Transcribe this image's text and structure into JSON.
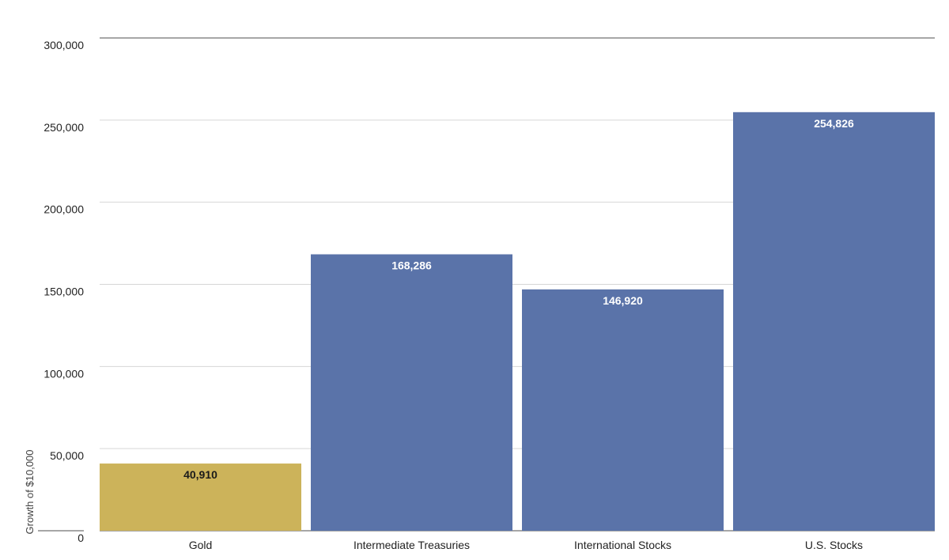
{
  "chart_data": {
    "type": "bar",
    "categories": [
      "Gold",
      "Intermediate Treasuries",
      "International Stocks",
      "U.S. Stocks"
    ],
    "values": [
      40910,
      168286,
      146920,
      254826
    ],
    "value_labels": [
      "40,910",
      "168,286",
      "146,920",
      "254,826"
    ],
    "ylabel": "Growth of $10,000",
    "ylim": [
      0,
      300000
    ],
    "yticks": [
      0,
      50000,
      100000,
      150000,
      200000,
      250000,
      300000
    ],
    "ytick_labels": [
      "0",
      "50,000",
      "100,000",
      "150,000",
      "200,000",
      "250,000",
      "300,000"
    ],
    "grid": true,
    "bar_colors": [
      "#CCB35A",
      "#5A73A9",
      "#5A73A9",
      "#5A73A9"
    ],
    "label_colors": [
      "#1a1a1a",
      "#ffffff",
      "#ffffff",
      "#ffffff"
    ]
  }
}
